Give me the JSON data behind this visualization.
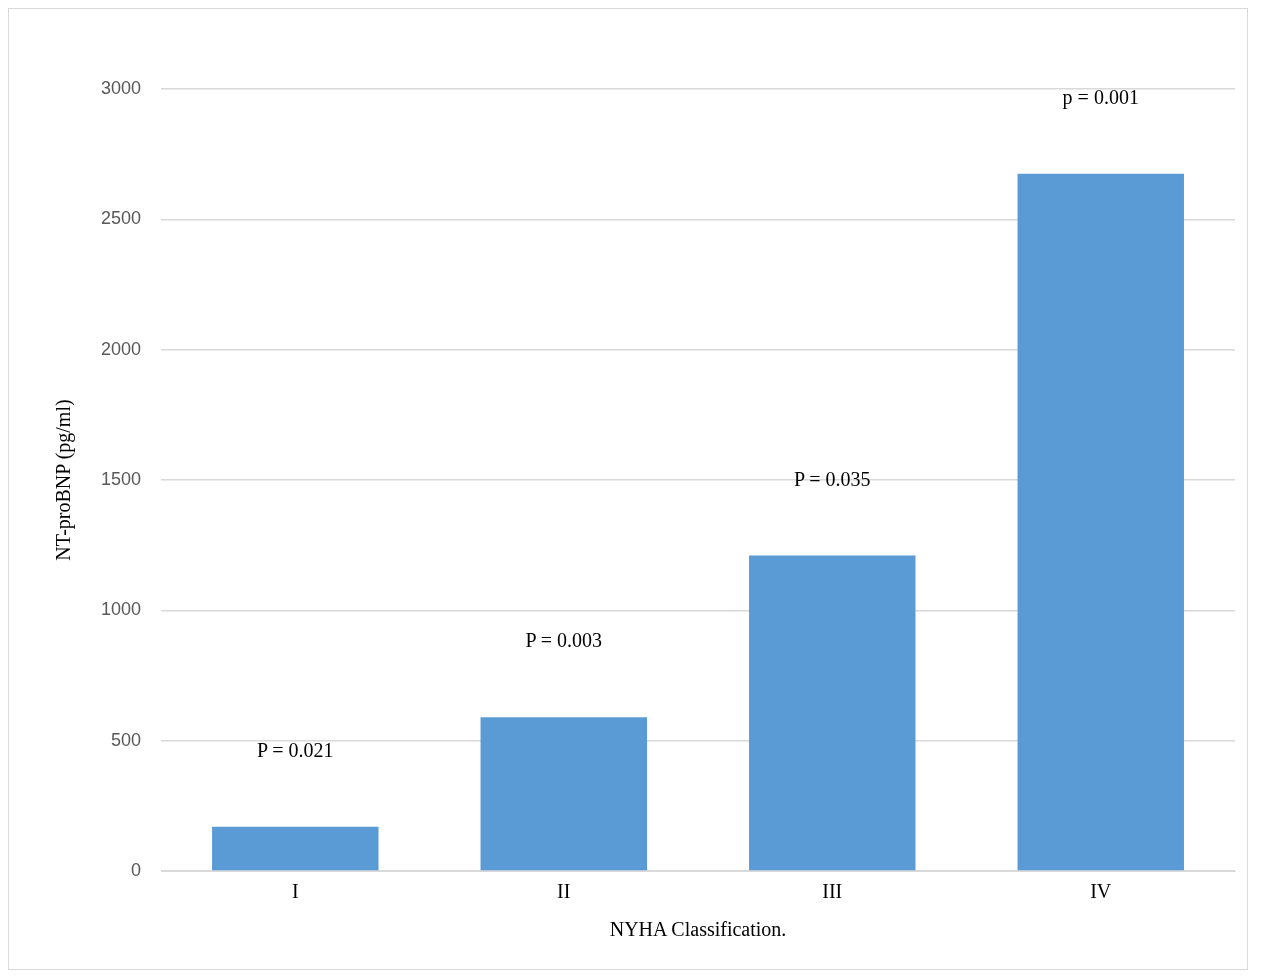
{
  "chart_data": {
    "type": "bar",
    "xlabel": "NYHA Classification.",
    "ylabel": "NT-proBNP (pg/ml)",
    "categories": [
      "I",
      "II",
      "III",
      "IV"
    ],
    "values": [
      170,
      590,
      1210,
      2675
    ],
    "color": "#5b9bd5",
    "ylim": [
      0,
      3000
    ],
    "yticks": [
      0,
      500,
      1000,
      1500,
      2000,
      2500,
      3000
    ],
    "grid": "y",
    "legend": false,
    "annotations": [
      "P = 0.021",
      "P = 0.003",
      "P = 0.035",
      "p = 0.001"
    ]
  }
}
